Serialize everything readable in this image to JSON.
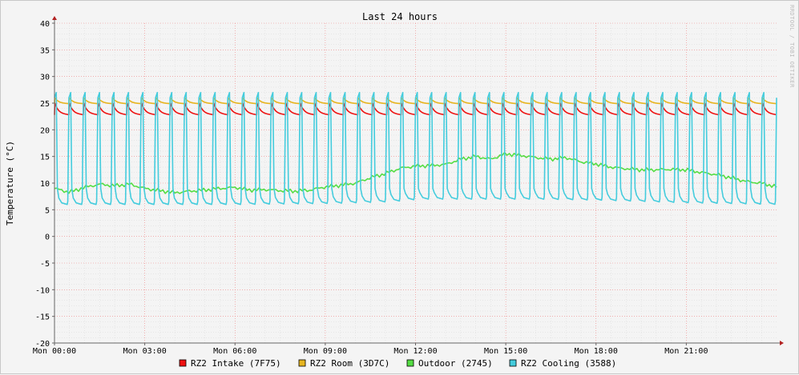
{
  "chart_data": {
    "type": "line",
    "title": "Last 24 hours",
    "ylabel": "Temperature (°C)",
    "watermark": "RRDTOOL / TOBI OETIKER",
    "ylim": [
      -20,
      40
    ],
    "y_ticks": [
      40,
      35,
      30,
      25,
      20,
      15,
      10,
      5,
      0,
      -5,
      -10,
      -15,
      -20
    ],
    "x_range_hours": [
      0,
      24
    ],
    "x_ticks": [
      {
        "hour": 0,
        "label": "Mon 00:00"
      },
      {
        "hour": 3,
        "label": "Mon 03:00"
      },
      {
        "hour": 6,
        "label": "Mon 06:00"
      },
      {
        "hour": 9,
        "label": "Mon 09:00"
      },
      {
        "hour": 12,
        "label": "Mon 12:00"
      },
      {
        "hour": 15,
        "label": "Mon 15:00"
      },
      {
        "hour": 18,
        "label": "Mon 18:00"
      },
      {
        "hour": 21,
        "label": "Mon 21:00"
      }
    ],
    "grid": true,
    "legend_position": "bottom",
    "series": [
      {
        "name": "RZ2 Intake (7F75)",
        "color": "#ee1111",
        "pattern": "sawtooth",
        "high": 25.0,
        "low": 22.8,
        "cycles": 50,
        "duty": 0.88
      },
      {
        "name": "RZ2 Room (3D7C)",
        "color": "#e6b520",
        "pattern": "sawtooth",
        "high": 26.0,
        "low": 24.9,
        "cycles": 50,
        "duty": 0.88
      },
      {
        "name": "Outdoor (2745)",
        "color": "#55dd44",
        "pattern": "profile",
        "values": [
          [
            0.0,
            9.0
          ],
          [
            0.5,
            8.3
          ],
          [
            1.0,
            9.2
          ],
          [
            1.5,
            9.8
          ],
          [
            2.0,
            9.5
          ],
          [
            2.5,
            9.8
          ],
          [
            3.0,
            9.0
          ],
          [
            3.5,
            8.6
          ],
          [
            4.0,
            8.2
          ],
          [
            4.5,
            8.5
          ],
          [
            5.0,
            8.7
          ],
          [
            5.5,
            9.0
          ],
          [
            6.0,
            9.2
          ],
          [
            6.5,
            8.7
          ],
          [
            7.0,
            8.8
          ],
          [
            7.5,
            8.6
          ],
          [
            8.0,
            8.5
          ],
          [
            8.5,
            8.7
          ],
          [
            9.0,
            9.3
          ],
          [
            9.5,
            9.6
          ],
          [
            10.0,
            10.0
          ],
          [
            10.5,
            11.0
          ],
          [
            11.0,
            11.8
          ],
          [
            11.5,
            12.8
          ],
          [
            12.0,
            13.2
          ],
          [
            12.5,
            13.3
          ],
          [
            13.0,
            13.5
          ],
          [
            13.5,
            14.5
          ],
          [
            14.0,
            15.0
          ],
          [
            14.5,
            14.5
          ],
          [
            15.0,
            15.5
          ],
          [
            15.5,
            15.2
          ],
          [
            16.0,
            14.8
          ],
          [
            16.5,
            14.5
          ],
          [
            17.0,
            14.8
          ],
          [
            17.5,
            14.0
          ],
          [
            18.0,
            13.6
          ],
          [
            18.5,
            13.0
          ],
          [
            19.0,
            12.7
          ],
          [
            19.5,
            12.5
          ],
          [
            20.0,
            12.5
          ],
          [
            20.5,
            12.6
          ],
          [
            21.0,
            12.5
          ],
          [
            21.5,
            12.0
          ],
          [
            22.0,
            11.6
          ],
          [
            22.5,
            11.0
          ],
          [
            23.0,
            10.3
          ],
          [
            23.5,
            10.0
          ],
          [
            24.0,
            9.3
          ]
        ]
      },
      {
        "name": "RZ2 Cooling (3588)",
        "color": "#44ccdd",
        "pattern": "pulses",
        "peak": 27.0,
        "cycles": 50,
        "base": [
          [
            0.0,
            6.0
          ],
          [
            3.0,
            6.0
          ],
          [
            6.0,
            6.0
          ],
          [
            9.0,
            6.2
          ],
          [
            11.0,
            6.5
          ],
          [
            12.0,
            7.0
          ],
          [
            15.0,
            7.0
          ],
          [
            16.0,
            7.0
          ],
          [
            18.0,
            6.8
          ],
          [
            21.0,
            6.3
          ],
          [
            24.0,
            6.0
          ]
        ]
      }
    ]
  }
}
